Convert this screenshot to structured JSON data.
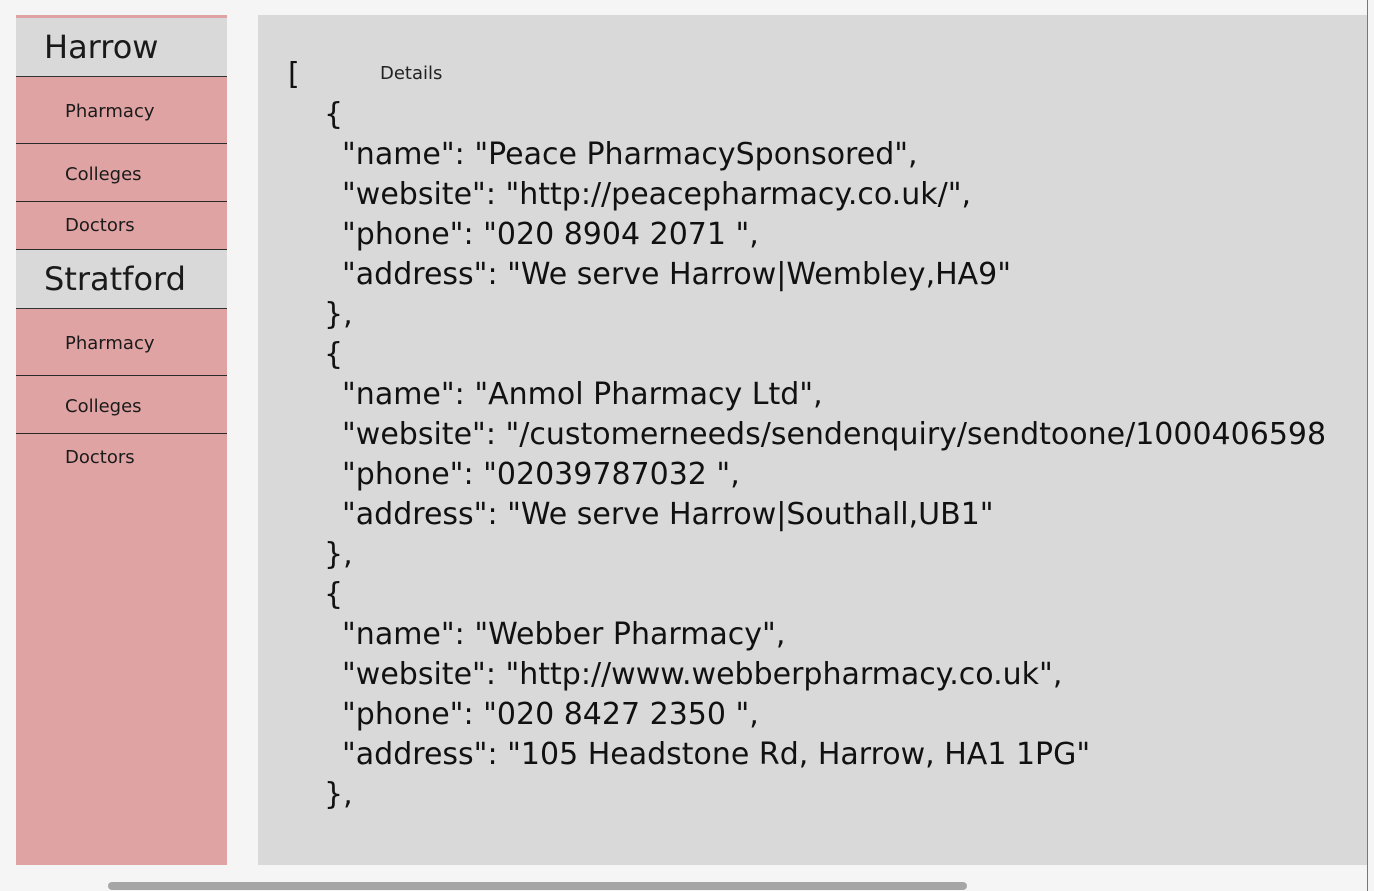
{
  "sidebar": {
    "sections": [
      {
        "city": "Harrow",
        "items": [
          "Pharmacy",
          "Colleges",
          "Doctors"
        ]
      },
      {
        "city": "Stratford",
        "items": [
          "Pharmacy",
          "Colleges",
          "Doctors"
        ]
      }
    ]
  },
  "main": {
    "details_label": "Details",
    "lines": [
      "[",
      "  {",
      "    \"name\": \"Peace PharmacySponsored\",",
      "    \"website\": \"http://peacepharmacy.co.uk/\",",
      "    \"phone\": \"020 8904 2071 \",",
      "    \"address\": \"We serve Harrow|Wembley,HA9\"",
      "  },",
      "  {",
      "    \"name\": \"Anmol Pharmacy Ltd\",",
      "    \"website\": \"/customerneeds/sendenquiry/sendtoone/1000406598",
      "    \"phone\": \"02039787032 \",",
      "    \"address\": \"We serve Harrow|Southall,UB1\"",
      "  },",
      "  {",
      "    \"name\": \"Webber Pharmacy\",",
      "    \"website\": \"http://www.webberpharmacy.co.uk\",",
      "    \"phone\": \"020 8427 2350 \",",
      "    \"address\": \"105 Headstone Rd, Harrow, HA1 1PG\"",
      "  },"
    ]
  }
}
